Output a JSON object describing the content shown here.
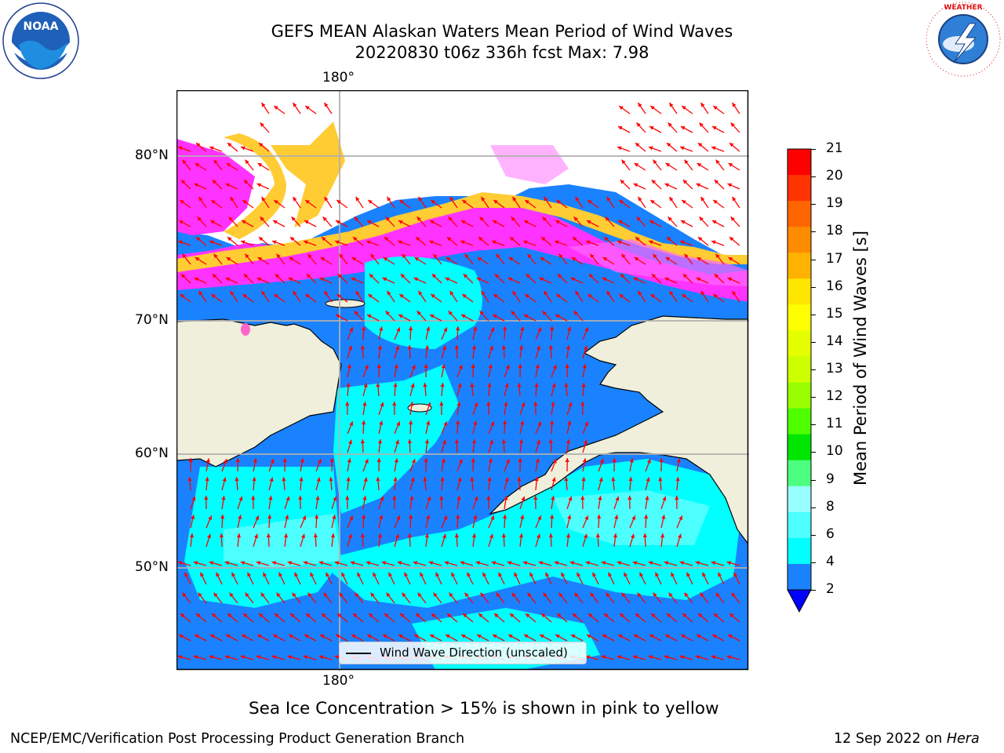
{
  "header": {
    "title_line1": "GEFS MEAN Alaskan Waters Mean Period of Wind Waves",
    "title_line2": "20220830 t06z 336h fcst   Max: 7.98"
  },
  "logos": {
    "noaa": {
      "text": "NOAA",
      "ring_text": "NATIONAL OCEANIC AND ATMOSPHERIC ADMINISTRATION · U.S. DEPARTMENT OF COMMERCE"
    },
    "nws": {
      "ring_text": "NATIONAL WEATHER SERVICE"
    }
  },
  "map": {
    "lon_label_top": "180°",
    "lon_label_bottom": "180°",
    "lat_labels": [
      "80°N",
      "70°N",
      "60°N",
      "50°N"
    ],
    "legend_label": "Wind Wave Direction (unscaled)",
    "colors": {
      "land": "#efefdb",
      "wave_2_4": "#1a82ff",
      "wave_4_6": "#00ffff",
      "wave_6_8": "#4dffff",
      "ice_low": "#ff33ff",
      "ice_mid": "#ffb3ff",
      "ice_high": "#ffcc33",
      "arrow": "#ff0000",
      "grid": "#b0b0b0"
    }
  },
  "colorbar": {
    "label": "Mean Period of Wind Waves [s]",
    "ticks": [
      "21",
      "20",
      "19",
      "18",
      "17",
      "16",
      "15",
      "14",
      "13",
      "12",
      "11",
      "10",
      "9",
      "8",
      "6",
      "4",
      "2"
    ],
    "colors": [
      "#ff0000",
      "#ff3300",
      "#ff6600",
      "#ff8c00",
      "#ffb300",
      "#ffe600",
      "#ffff00",
      "#e6ff00",
      "#ccff00",
      "#99ff00",
      "#4dff00",
      "#00e600",
      "#4dff80",
      "#99ffff",
      "#4dffff",
      "#00ffff",
      "#1a82ff",
      "#0000ff"
    ]
  },
  "notes": {
    "sea_ice": "Sea Ice Concentration > 15% is shown in pink to yellow"
  },
  "footer": {
    "left": "NCEP/EMC/Verification Post Processing Product Generation Branch",
    "right_date": "12 Sep 2022 on ",
    "right_host": "Hera"
  }
}
